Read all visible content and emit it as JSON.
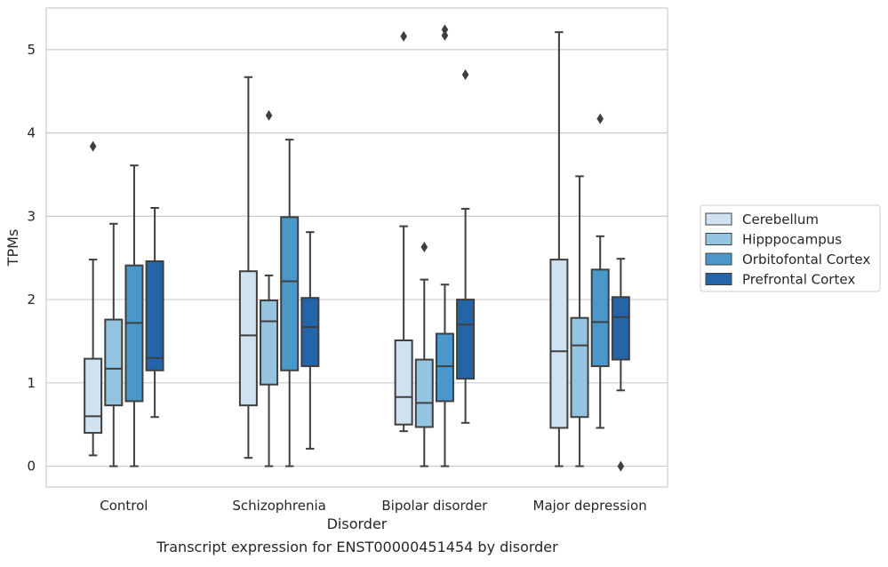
{
  "caption": "Transcript expression for ENST00000451454 by disorder",
  "chart_data": {
    "type": "box",
    "title": "",
    "xlabel": "Disorder",
    "ylabel": "TPMs",
    "ylim": [
      -0.25,
      5.5
    ],
    "yticks": [
      0,
      1,
      2,
      3,
      4,
      5
    ],
    "grid": true,
    "legend_position": "right",
    "categories": [
      "Control",
      "Schizophrenia",
      "Bipolar disorder",
      "Major depression"
    ],
    "series": [
      {
        "name": "Cerebellum",
        "color": "#d0e1f2",
        "boxes": [
          {
            "whisker_low": 0.13,
            "q1": 0.4,
            "median": 0.6,
            "q3": 1.29,
            "whisker_high": 2.48,
            "outliers": [
              3.84
            ]
          },
          {
            "whisker_low": 0.1,
            "q1": 0.73,
            "median": 1.57,
            "q3": 2.34,
            "whisker_high": 4.67,
            "outliers": []
          },
          {
            "whisker_low": 0.42,
            "q1": 0.5,
            "median": 0.83,
            "q3": 1.51,
            "whisker_high": 2.88,
            "outliers": [
              5.16
            ]
          },
          {
            "whisker_low": 0.0,
            "q1": 0.46,
            "median": 1.38,
            "q3": 2.48,
            "whisker_high": 5.21,
            "outliers": []
          }
        ]
      },
      {
        "name": "Hipppocampus",
        "color": "#94c4df",
        "boxes": [
          {
            "whisker_low": 0.0,
            "q1": 0.73,
            "median": 1.17,
            "q3": 1.76,
            "whisker_high": 2.91,
            "outliers": []
          },
          {
            "whisker_low": 0.0,
            "q1": 0.98,
            "median": 1.74,
            "q3": 1.99,
            "whisker_high": 2.29,
            "outliers": [
              4.21
            ]
          },
          {
            "whisker_low": 0.0,
            "q1": 0.47,
            "median": 0.76,
            "q3": 1.28,
            "whisker_high": 2.24,
            "outliers": [
              2.63
            ]
          },
          {
            "whisker_low": 0.0,
            "q1": 0.59,
            "median": 1.45,
            "q3": 1.78,
            "whisker_high": 3.48,
            "outliers": []
          }
        ]
      },
      {
        "name": "Orbitofontal Cortex",
        "color": "#4a98c9",
        "boxes": [
          {
            "whisker_low": 0.0,
            "q1": 0.78,
            "median": 1.72,
            "q3": 2.41,
            "whisker_high": 3.61,
            "outliers": []
          },
          {
            "whisker_low": 0.0,
            "q1": 1.15,
            "median": 2.22,
            "q3": 2.99,
            "whisker_high": 3.92,
            "outliers": []
          },
          {
            "whisker_low": 0.0,
            "q1": 0.78,
            "median": 1.2,
            "q3": 1.59,
            "whisker_high": 2.18,
            "outliers": [
              5.17,
              5.24
            ]
          },
          {
            "whisker_low": 0.46,
            "q1": 1.2,
            "median": 1.73,
            "q3": 2.36,
            "whisker_high": 2.76,
            "outliers": [
              4.17
            ]
          }
        ]
      },
      {
        "name": "Prefrontal Cortex",
        "color": "#2365a8",
        "boxes": [
          {
            "whisker_low": 0.59,
            "q1": 1.15,
            "median": 1.3,
            "q3": 2.46,
            "whisker_high": 3.1,
            "outliers": []
          },
          {
            "whisker_low": 0.21,
            "q1": 1.2,
            "median": 1.67,
            "q3": 2.02,
            "whisker_high": 2.81,
            "outliers": []
          },
          {
            "whisker_low": 0.52,
            "q1": 1.05,
            "median": 1.7,
            "q3": 2.0,
            "whisker_high": 3.09,
            "outliers": [
              4.7
            ]
          },
          {
            "whisker_low": 0.91,
            "q1": 1.28,
            "median": 1.79,
            "q3": 2.03,
            "whisker_high": 2.49,
            "outliers": [
              0.0
            ]
          }
        ]
      }
    ]
  }
}
